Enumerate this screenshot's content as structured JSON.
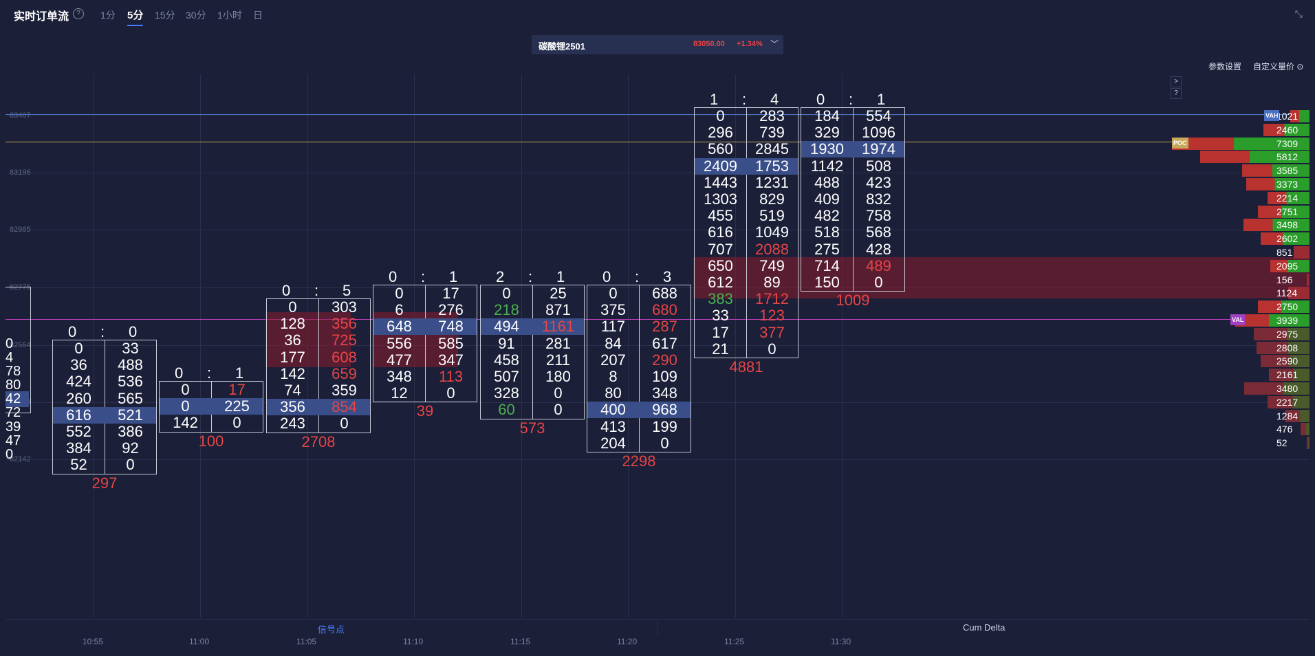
{
  "header": {
    "title": "实时订单流",
    "tabs": [
      "1分",
      "5分",
      "15分",
      "30分",
      "1小时",
      "日"
    ],
    "active_tab": "5分"
  },
  "symbol": {
    "name": "碳酸锂2501",
    "price": "83050.00",
    "change": "+1.34%"
  },
  "links": {
    "params": "参数设置",
    "custom": "自定义量价"
  },
  "price_axis": [
    "83618",
    "83407",
    "83196",
    "82985",
    "82775",
    "82564",
    "82353",
    "82142"
  ],
  "time_axis": [
    "10:55",
    "11:00",
    "11:05",
    "11:10",
    "11:15",
    "11:20",
    "11:25",
    "11:30"
  ],
  "bottom_tabs": {
    "signal": "信号点",
    "cum_delta": "Cum Delta"
  },
  "side_buttons": {
    "next": ">",
    "help": "?"
  },
  "partial_column": [
    "0",
    "4",
    "78",
    "80",
    "42",
    "72",
    "39",
    "47",
    "0"
  ],
  "footprints": [
    {
      "ratio": [
        "0",
        "0"
      ],
      "delta": "297",
      "rows": [
        [
          "0",
          "33"
        ],
        [
          "36",
          "488"
        ],
        [
          "424",
          "536"
        ],
        [
          "260",
          "565"
        ],
        [
          "616",
          "521"
        ],
        [
          "552",
          "386"
        ],
        [
          "384",
          "92"
        ],
        [
          "52",
          "0"
        ]
      ]
    },
    {
      "ratio": [
        "0",
        "1"
      ],
      "delta": "100",
      "rows": [
        [
          "0",
          "17"
        ],
        [
          "0",
          "225"
        ],
        [
          "142",
          "0"
        ]
      ]
    },
    {
      "ratio": [
        "0",
        "5"
      ],
      "delta": "2708",
      "rows": [
        [
          "0",
          "303"
        ],
        [
          "128",
          "356"
        ],
        [
          "36",
          "725"
        ],
        [
          "177",
          "608"
        ],
        [
          "142",
          "659"
        ],
        [
          "74",
          "359"
        ],
        [
          "356",
          "854"
        ],
        [
          "243",
          "0"
        ]
      ]
    },
    {
      "ratio": [
        "0",
        "1"
      ],
      "delta": "39",
      "rows": [
        [
          "0",
          "17"
        ],
        [
          "6",
          "276"
        ],
        [
          "648",
          "748"
        ],
        [
          "556",
          "585"
        ],
        [
          "477",
          "347"
        ],
        [
          "348",
          "113"
        ],
        [
          "12",
          "0"
        ]
      ]
    },
    {
      "ratio": [
        "2",
        "1"
      ],
      "delta": "573",
      "rows": [
        [
          "0",
          "25"
        ],
        [
          "218",
          "871"
        ],
        [
          "494",
          "1161"
        ],
        [
          "91",
          "281"
        ],
        [
          "458",
          "211"
        ],
        [
          "507",
          "180"
        ],
        [
          "328",
          "0"
        ],
        [
          "60",
          "0"
        ]
      ]
    },
    {
      "ratio": [
        "0",
        "3"
      ],
      "delta": "2298",
      "rows": [
        [
          "0",
          "688"
        ],
        [
          "375",
          "680"
        ],
        [
          "117",
          "287"
        ],
        [
          "84",
          "617"
        ],
        [
          "207",
          "290"
        ],
        [
          "8",
          "109"
        ],
        [
          "80",
          "348"
        ],
        [
          "400",
          "968"
        ],
        [
          "413",
          "199"
        ],
        [
          "204",
          "0"
        ]
      ]
    },
    {
      "ratio": [
        "1",
        "4"
      ],
      "delta": "4881",
      "rows": [
        [
          "0",
          "283"
        ],
        [
          "296",
          "739"
        ],
        [
          "560",
          "2845"
        ],
        [
          "2409",
          "1753"
        ],
        [
          "1443",
          "1231"
        ],
        [
          "1303",
          "829"
        ],
        [
          "455",
          "519"
        ],
        [
          "616",
          "1049"
        ],
        [
          "707",
          "2088"
        ],
        [
          "650",
          "749"
        ],
        [
          "612",
          "89"
        ],
        [
          "383",
          "1712"
        ],
        [
          "33",
          "123"
        ],
        [
          "17",
          "377"
        ],
        [
          "21",
          "0"
        ]
      ]
    },
    {
      "ratio": [
        "0",
        "1"
      ],
      "delta": "1009",
      "rows": [
        [
          "184",
          "554"
        ],
        [
          "329",
          "1096"
        ],
        [
          "1930",
          "1974"
        ],
        [
          "1142",
          "508"
        ],
        [
          "488",
          "423"
        ],
        [
          "409",
          "832"
        ],
        [
          "482",
          "758"
        ],
        [
          "518",
          "568"
        ],
        [
          "275",
          "428"
        ],
        [
          "714",
          "489"
        ],
        [
          "150",
          "0"
        ]
      ]
    }
  ],
  "volume_profile": {
    "tags": {
      "vah": "VAH",
      "poc": "POC",
      "val": "VAL"
    },
    "values": [
      "1021",
      "2460",
      "7309",
      "5812",
      "3585",
      "3373",
      "2214",
      "2751",
      "3498",
      "2602",
      "851",
      "2095",
      "156",
      "1124",
      "2750",
      "3939",
      "2975",
      "2808",
      "2590",
      "2161",
      "3480",
      "2217",
      "1284",
      "476",
      "52"
    ]
  },
  "colors": {
    "background": "#1b1f38",
    "sell": "#e84545",
    "buy": "#2a9d2a",
    "highlight": "#3a4f8a",
    "poc_line": "#c8a85a",
    "vah_line": "#4a6fc0",
    "val_line": "#c040c0"
  }
}
